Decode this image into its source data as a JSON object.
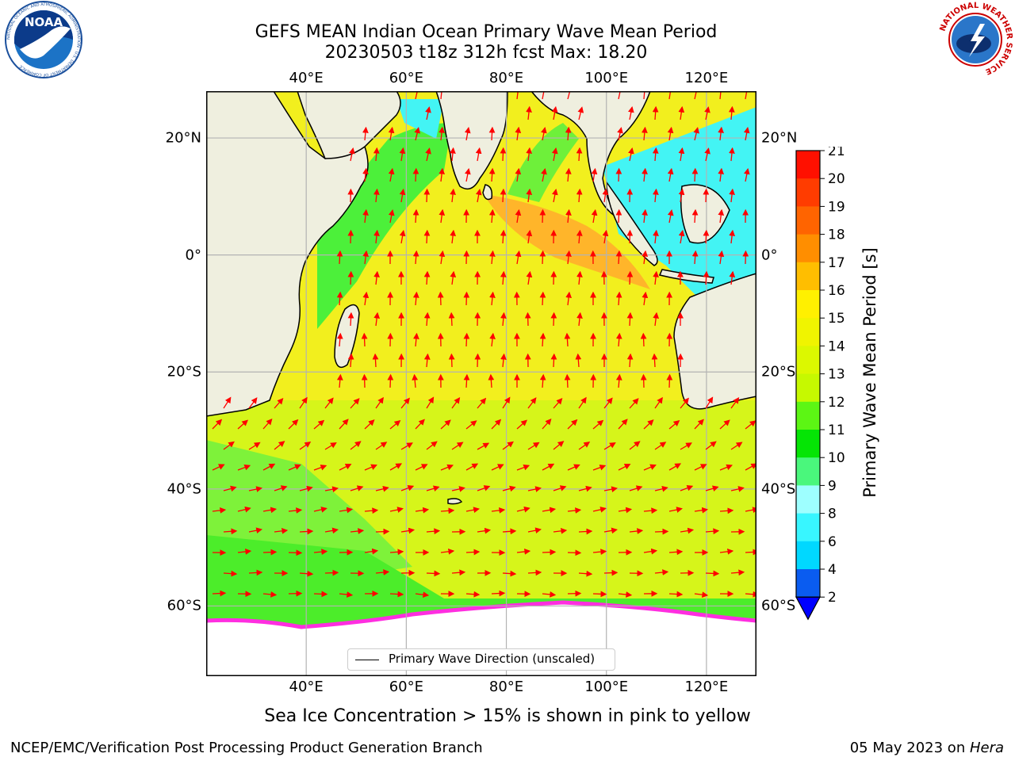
{
  "title": {
    "line1": "GEFS MEAN Indian Ocean Primary Wave Mean Period",
    "line2": "20230503 t18z 312h fcst   Max: 18.20"
  },
  "axes": {
    "lon_ticks": [
      "40°E",
      "60°E",
      "80°E",
      "100°E",
      "120°E"
    ],
    "lat_ticks": [
      "20°N",
      "0°",
      "20°S",
      "40°S",
      "60°S"
    ],
    "lon_values": [
      40,
      60,
      80,
      100,
      120
    ],
    "lat_values": [
      20,
      0,
      -20,
      -40,
      -60
    ],
    "lon_range": [
      20,
      130
    ],
    "lat_range": [
      -72,
      28
    ],
    "gridlines": true
  },
  "colorbar": {
    "title": "Primary Wave Mean Period [s]",
    "tick_labels": [
      "2",
      "4",
      "6",
      "8",
      "9",
      "10",
      "11",
      "12",
      "13",
      "14",
      "15",
      "16",
      "17",
      "18",
      "19",
      "20",
      "21"
    ],
    "colors": [
      "#0a5cf0",
      "#00d8ff",
      "#38f6ff",
      "#9effff",
      "#4af77c",
      "#05e505",
      "#5cf614",
      "#c6f900",
      "#dcf800",
      "#f0f400",
      "#fff000",
      "#ffbe00",
      "#ff8e00",
      "#ff6400",
      "#ff3c00",
      "#ff1000"
    ],
    "under_color": "#0000ff",
    "extend": "min"
  },
  "legend": {
    "label": "Primary Wave Direction (unscaled)"
  },
  "caption": "Sea Ice Concentration > 15% is shown in pink to yellow",
  "footer": {
    "left": "NCEP/EMC/Verification Post Processing Product Generation Branch",
    "date": "05 May 2023 on ",
    "machine": "Hera"
  },
  "logos": {
    "noaa": "NOAA",
    "noaa_ring": "NATIONAL OCEANIC AND ATMOSPHERIC ADMINISTRATION · U.S. DEPARTMENT OF COMMERCE",
    "nws_ring": "NATIONAL WEATHER SERVICE"
  },
  "colors": {
    "land": "#efefdf",
    "ocean_main": "#f2ef1e",
    "ocean_southern": "#c9f515",
    "ocean_green": "#49f02a",
    "ocean_cyan": "#43f4f4",
    "ocean_orange": "#ffb830",
    "ice": "#ffffff",
    "ice_edge": "#ff2ee0",
    "arrows": "#ff0000",
    "gridline": "#b3b3b3"
  }
}
